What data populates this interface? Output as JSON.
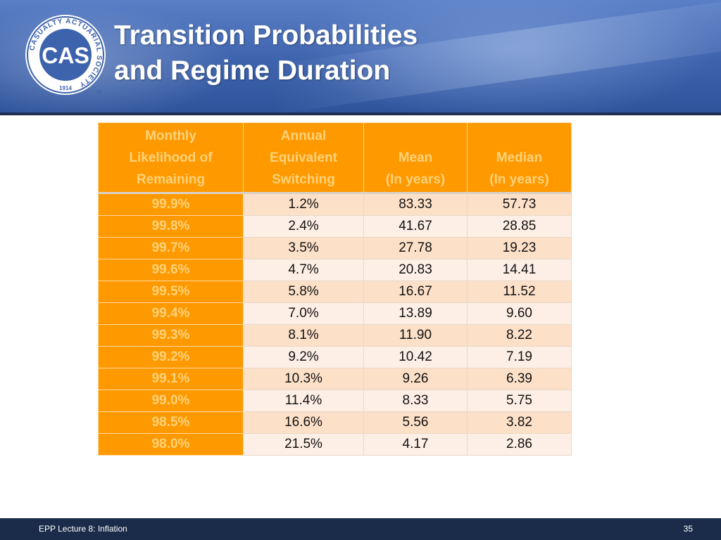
{
  "header": {
    "logo": {
      "letters": "CAS",
      "ring_text": "CASUALTY ACTUARIAL SOCIETY",
      "year": "1914",
      "registered": "®"
    },
    "title_lines": [
      "Transition Probabilities",
      "and Regime Duration"
    ]
  },
  "table": {
    "columns": [
      [
        "Monthly",
        "Likelihood of",
        "Remaining"
      ],
      [
        "Annual",
        "Equivalent",
        "Switching"
      ],
      [
        "Mean",
        "(In years)"
      ],
      [
        "Median",
        "(In years)"
      ]
    ],
    "rows": [
      [
        "99.9%",
        "1.2%",
        "83.33",
        "57.73"
      ],
      [
        "99.8%",
        "2.4%",
        "41.67",
        "28.85"
      ],
      [
        "99.7%",
        "3.5%",
        "27.78",
        "19.23"
      ],
      [
        "99.6%",
        "4.7%",
        "20.83",
        "14.41"
      ],
      [
        "99.5%",
        "5.8%",
        "16.67",
        "11.52"
      ],
      [
        "99.4%",
        "7.0%",
        "13.89",
        "9.60"
      ],
      [
        "99.3%",
        "8.1%",
        "11.90",
        "8.22"
      ],
      [
        "99.2%",
        "9.2%",
        "10.42",
        "7.19"
      ],
      [
        "99.1%",
        "10.3%",
        "9.26",
        "6.39"
      ],
      [
        "99.0%",
        "11.4%",
        "8.33",
        "5.75"
      ],
      [
        "98.5%",
        "16.6%",
        "5.56",
        "3.82"
      ],
      [
        "98.0%",
        "21.5%",
        "4.17",
        "2.86"
      ]
    ]
  },
  "footer": {
    "lecture": "EPP Lecture 8:  Inflation",
    "page_number": "35"
  },
  "colors": {
    "header_blue": "#3e63ad",
    "table_orange": "#ff9900",
    "header_text_orange": "#ffd27a",
    "footer_navy": "#1a2c4a"
  }
}
